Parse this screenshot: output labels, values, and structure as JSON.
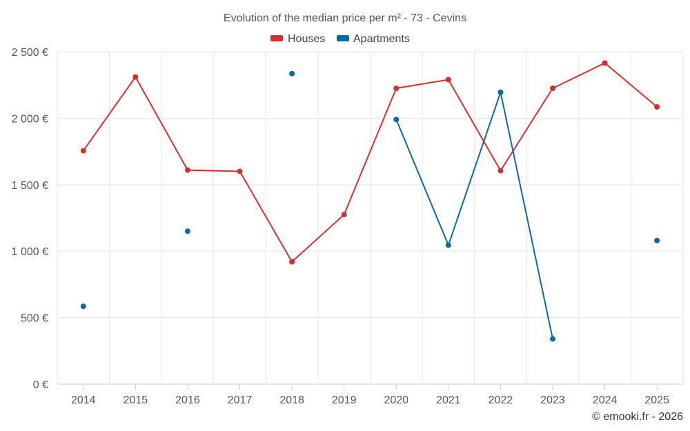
{
  "chart_data": {
    "type": "line",
    "title": "Evolution of the median price per m² - 73 - Cevins",
    "categories": [
      "2014",
      "2015",
      "2016",
      "2017",
      "2018",
      "2019",
      "2020",
      "2021",
      "2022",
      "2023",
      "2024",
      "2025"
    ],
    "ylim": [
      0,
      2500
    ],
    "yticks": [
      0,
      500,
      1000,
      1500,
      2000,
      2500
    ],
    "ytick_labels": [
      "0 €",
      "500 €",
      "1 000 €",
      "1 500 €",
      "2 000 €",
      "2 500 €"
    ],
    "grid": true,
    "legend_position": "top-center",
    "series": [
      {
        "name": "Houses",
        "color": "#d32f2f",
        "values": [
          1755,
          2310,
          1610,
          1600,
          920,
          1275,
          2225,
          2290,
          1605,
          2225,
          2415,
          2085
        ]
      },
      {
        "name": "Apartments",
        "color": "#0a6a9f",
        "values": [
          585,
          null,
          1150,
          null,
          2335,
          null,
          1990,
          1045,
          2195,
          340,
          null,
          1080
        ]
      }
    ],
    "credit": "© emooki.fr - 2026"
  }
}
